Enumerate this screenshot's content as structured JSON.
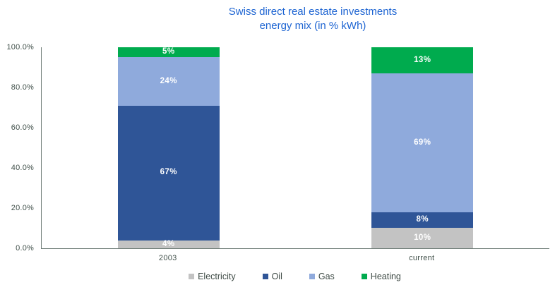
{
  "title": {
    "line1": "Swiss direct real estate investments",
    "line2": "energy mix (in % kWh)"
  },
  "colors": {
    "title_blue": "#1d64d2",
    "electricity_gray": "#c3c3c3",
    "oil_dark_blue": "#2f5597",
    "gas_light_blue": "#8faadc",
    "heating_green": "#00ab4e",
    "axis_line": "#6d7b75",
    "axis_text": "#42514b"
  },
  "chart_data": {
    "type": "bar",
    "stacked": true,
    "title": "Swiss direct real estate investments energy mix (in % kWh)",
    "categories": [
      "2003",
      "current"
    ],
    "series": [
      {
        "name": "Electricity",
        "color": "#c3c3c3",
        "values": [
          4,
          10
        ],
        "labels": [
          "4%",
          "10%"
        ]
      },
      {
        "name": "Oil",
        "color": "#2f5597",
        "values": [
          67,
          8
        ],
        "labels": [
          "67%",
          "8%"
        ]
      },
      {
        "name": "Gas",
        "color": "#8faadc",
        "values": [
          24,
          69
        ],
        "labels": [
          "24%",
          "69%"
        ]
      },
      {
        "name": "Heating",
        "color": "#00ab4e",
        "values": [
          5,
          13
        ],
        "labels": [
          "5%",
          "13%"
        ]
      }
    ],
    "xlabel": "",
    "ylabel": "",
    "ylim": [
      0,
      100
    ],
    "ytick_values": [
      0,
      20,
      40,
      60,
      80,
      100
    ],
    "ytick_labels": [
      "0.0%",
      "20.0%",
      "40.0%",
      "60.0%",
      "80.0%",
      "100.0%"
    ],
    "grid": false,
    "legend_position": "bottom",
    "data_labels_color": "#ffffff"
  }
}
